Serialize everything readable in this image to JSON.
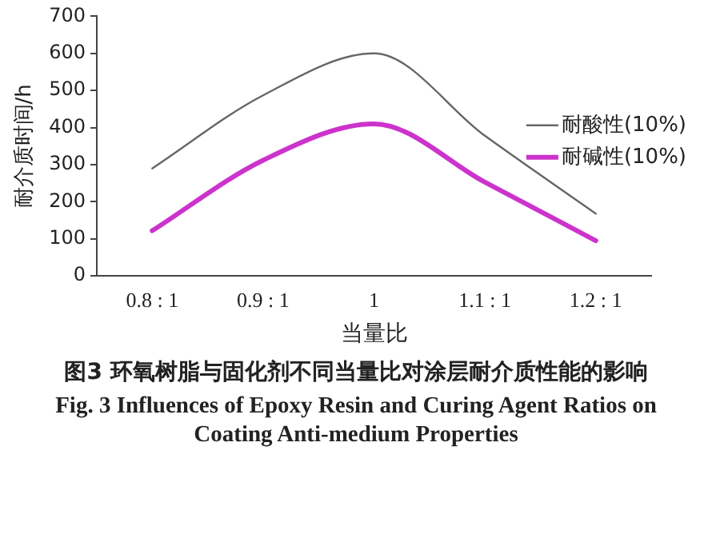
{
  "chart_data": {
    "type": "line",
    "title": "图3   环氧树脂与固化剂不同当量比对涂层耐介质性能的影响",
    "subtitle": "Fig. 3  Influences of Epoxy Resin and Curing Agent Ratios on Coating Anti-medium Properties",
    "xlabel": "当量比",
    "ylabel": "耐介质时间/h",
    "categories": [
      "0.8 : 1",
      "0.9 : 1",
      "1",
      "1.1 : 1",
      "1.2 : 1"
    ],
    "series": [
      {
        "name": "耐酸性(10%)",
        "color": "#666666",
        "values": [
          290,
          487,
          600,
          378,
          168
        ]
      },
      {
        "name": "耐碱性(10%)",
        "color": "#cc33cc",
        "values": [
          122,
          312,
          410,
          253,
          95
        ]
      }
    ],
    "ylim": [
      0,
      700
    ],
    "yticks": [
      0,
      100,
      200,
      300,
      400,
      500,
      600,
      700
    ],
    "grid": false,
    "legend": "right",
    "marker": "none",
    "line_style": "solid"
  }
}
